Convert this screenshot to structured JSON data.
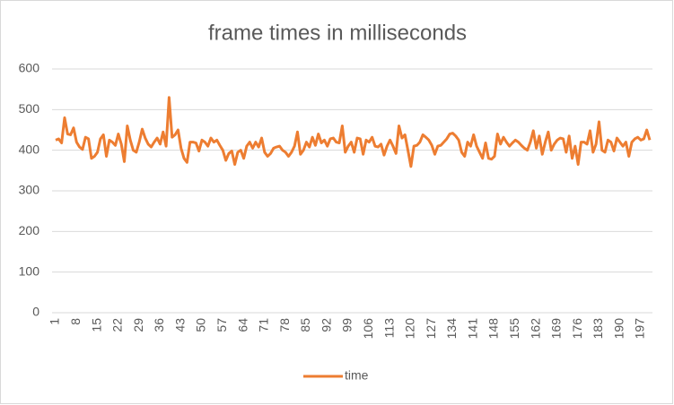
{
  "chart_data": {
    "type": "line",
    "title": "frame times in milliseconds",
    "categories": [
      "1",
      null,
      null,
      null,
      null,
      null,
      null,
      "8",
      null,
      null,
      null,
      null,
      null,
      null,
      "15",
      null,
      null,
      null,
      null,
      null,
      null,
      "22",
      null,
      null,
      null,
      null,
      null,
      null,
      "29",
      null,
      null,
      null,
      null,
      null,
      null,
      "36",
      null,
      null,
      null,
      null,
      null,
      null,
      "43",
      null,
      null,
      null,
      null,
      null,
      null,
      "50",
      null,
      null,
      null,
      null,
      null,
      null,
      "57",
      null,
      null,
      null,
      null,
      null,
      null,
      "64",
      null,
      null,
      null,
      null,
      null,
      null,
      "71",
      null,
      null,
      null,
      null,
      null,
      null,
      "78",
      null,
      null,
      null,
      null,
      null,
      null,
      "85",
      null,
      null,
      null,
      null,
      null,
      null,
      "92",
      null,
      null,
      null,
      null,
      null,
      null,
      "99",
      null,
      null,
      null,
      null,
      null,
      null,
      "106",
      null,
      null,
      null,
      null,
      null,
      null,
      "113",
      null,
      null,
      null,
      null,
      null,
      null,
      "120",
      null,
      null,
      null,
      null,
      null,
      null,
      "127",
      null,
      null,
      null,
      null,
      null,
      null,
      "134",
      null,
      null,
      null,
      null,
      null,
      null,
      "141",
      null,
      null,
      null,
      null,
      null,
      null,
      "148",
      null,
      null,
      null,
      null,
      null,
      null,
      "155",
      null,
      null,
      null,
      null,
      null,
      null,
      "162",
      null,
      null,
      null,
      null,
      null,
      null,
      "169",
      null,
      null,
      null,
      null,
      null,
      null,
      "176",
      null,
      null,
      null,
      null,
      null,
      null,
      "183",
      null,
      null,
      null,
      null,
      null,
      null,
      "190",
      null,
      null,
      null,
      null,
      null,
      null,
      "197",
      null,
      null,
      null
    ],
    "series": [
      {
        "name": "time",
        "color": "#ed7d31",
        "values": [
          425,
          428,
          418,
          480,
          440,
          438,
          455,
          420,
          408,
          402,
          432,
          428,
          380,
          385,
          395,
          428,
          438,
          385,
          425,
          420,
          412,
          440,
          415,
          372,
          460,
          425,
          400,
          395,
          420,
          452,
          430,
          415,
          408,
          420,
          430,
          415,
          445,
          410,
          530,
          432,
          438,
          450,
          405,
          380,
          370,
          420,
          420,
          418,
          398,
          425,
          420,
          410,
          430,
          420,
          425,
          412,
          400,
          375,
          392,
          398,
          365,
          395,
          400,
          380,
          410,
          420,
          405,
          420,
          408,
          430,
          395,
          385,
          392,
          405,
          408,
          410,
          400,
          395,
          385,
          395,
          410,
          445,
          390,
          400,
          420,
          408,
          432,
          412,
          440,
          418,
          425,
          410,
          428,
          430,
          420,
          418,
          460,
          395,
          410,
          420,
          395,
          430,
          428,
          390,
          425,
          420,
          432,
          410,
          408,
          415,
          388,
          410,
          425,
          410,
          392,
          460,
          430,
          438,
          400,
          360,
          410,
          412,
          420,
          438,
          432,
          425,
          412,
          390,
          410,
          412,
          420,
          428,
          440,
          442,
          435,
          425,
          395,
          385,
          420,
          410,
          438,
          410,
          395,
          380,
          418,
          380,
          378,
          385,
          440,
          415,
          432,
          420,
          410,
          418,
          425,
          420,
          412,
          405,
          400,
          420,
          448,
          405,
          435,
          390,
          420,
          445,
          400,
          415,
          425,
          430,
          428,
          395,
          435,
          380,
          410,
          365,
          420,
          420,
          415,
          448,
          395,
          415,
          470,
          400,
          395,
          425,
          420,
          398,
          430,
          420,
          410,
          420,
          385,
          420,
          428,
          432,
          425,
          428,
          450,
          425
        ]
      }
    ],
    "ylim": [
      0,
      600
    ],
    "yticks": [
      0,
      100,
      200,
      300,
      400,
      500,
      600
    ],
    "grid": true,
    "legend": "bottom"
  }
}
